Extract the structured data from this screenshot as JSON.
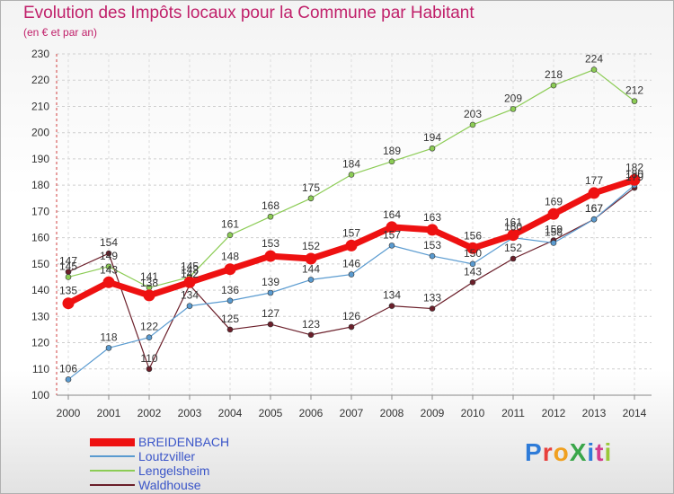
{
  "title": "Evolution des Impôts locaux pour la Commune par Habitant",
  "subtitle": "(en € et par an)",
  "brand": "ProXiti",
  "brand_colors": [
    "#2e7bd8",
    "#e8403c",
    "#f0a020",
    "#3aa64a",
    "#2e7bd8",
    "#d43d8d",
    "#9ac83a"
  ],
  "chart_data": {
    "type": "line",
    "title": "Evolution des Impôts locaux pour la Commune par Habitant",
    "subtitle": "(en € et par an)",
    "xlabel": "",
    "ylabel": "",
    "categories": [
      "2000",
      "2001",
      "2002",
      "2003",
      "2004",
      "2005",
      "2006",
      "2007",
      "2008",
      "2009",
      "2010",
      "2011",
      "2012",
      "2013",
      "2014"
    ],
    "ylim": [
      100,
      230
    ],
    "yticks": [
      100,
      110,
      120,
      130,
      140,
      150,
      160,
      170,
      180,
      190,
      200,
      210,
      220,
      230
    ],
    "grid": "horizontal dashed",
    "legend_position": "bottom-left",
    "series": [
      {
        "name": "Waldhouse",
        "color": "#6b1f2a",
        "values": [
          147,
          154,
          110,
          142,
          125,
          127,
          123,
          126,
          134,
          133,
          143,
          152,
          159,
          167,
          179
        ]
      },
      {
        "name": "Loutzviller",
        "color": "#5a9bd0",
        "values": [
          106,
          118,
          122,
          134,
          136,
          139,
          144,
          146,
          157,
          153,
          150,
          160,
          158,
          167,
          180
        ]
      },
      {
        "name": "Lengelsheim",
        "color": "#8ccc55",
        "values": [
          145,
          149,
          141,
          145,
          161,
          168,
          175,
          184,
          189,
          194,
          203,
          209,
          218,
          224,
          212
        ]
      },
      {
        "name": "BREIDENBACH",
        "color": "#ee1111",
        "values": [
          135,
          143,
          138,
          143,
          148,
          153,
          152,
          157,
          164,
          163,
          156,
          161,
          169,
          177,
          182
        ]
      }
    ],
    "legend": [
      "BREIDENBACH",
      "Loutzviller",
      "Lengelsheim",
      "Waldhouse"
    ]
  }
}
